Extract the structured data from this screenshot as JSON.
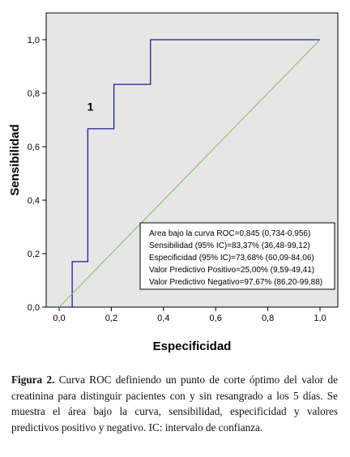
{
  "chart_data": {
    "type": "line",
    "xlabel": "Especificidad",
    "ylabel": "Sensibilidad",
    "xlim": [
      0,
      1
    ],
    "ylim": [
      0,
      1
    ],
    "x_ticks": [
      "0,0",
      "0,2",
      "0,4",
      "0,6",
      "0,8",
      "1,0"
    ],
    "y_ticks": [
      "0,0",
      "0,2",
      "0,4",
      "0,6",
      "0,8",
      "1,0"
    ],
    "background": "#e6e6e6",
    "series": [
      {
        "color": "#1d1d9a",
        "x": [
          0.0,
          0.05,
          0.05,
          0.11,
          0.11,
          0.21,
          0.21,
          0.35,
          0.35,
          1.0
        ],
        "y": [
          0.0,
          0.0,
          0.17,
          0.17,
          0.667,
          0.667,
          0.833,
          0.833,
          1.0,
          1.0
        ]
      },
      {
        "color": "#7fbf5f",
        "x": [
          0.0,
          1.0
        ],
        "y": [
          0.0,
          1.0
        ]
      }
    ],
    "annotations": [
      {
        "text": "1",
        "x": 0.12,
        "y": 0.735
      }
    ],
    "stats_box": [
      "Area bajo la curva ROC=0,845 (0,734-0,956)",
      "Sensibilidad (95% IC)=83,37% (36,48-99,12)",
      "Especificidad (95% IC)=73,68% (60,09-84,06)",
      "Valor Predictivo Positivo=25,00% (9,59-49,41)",
      "Valor Predictivo Negativo=97,67% (86,20-99,88)"
    ]
  },
  "caption": {
    "label": "Figura 2.",
    "text": " Curva  ROC definiendo un punto de corte óptimo del valor de creatinina para distinguir pacientes con y sin resangrado a los 5 días. Se muestra el área bajo la curva, sensibilidad, especificidad y valores predictivos positivo y negativo. IC: intervalo de confianza."
  }
}
